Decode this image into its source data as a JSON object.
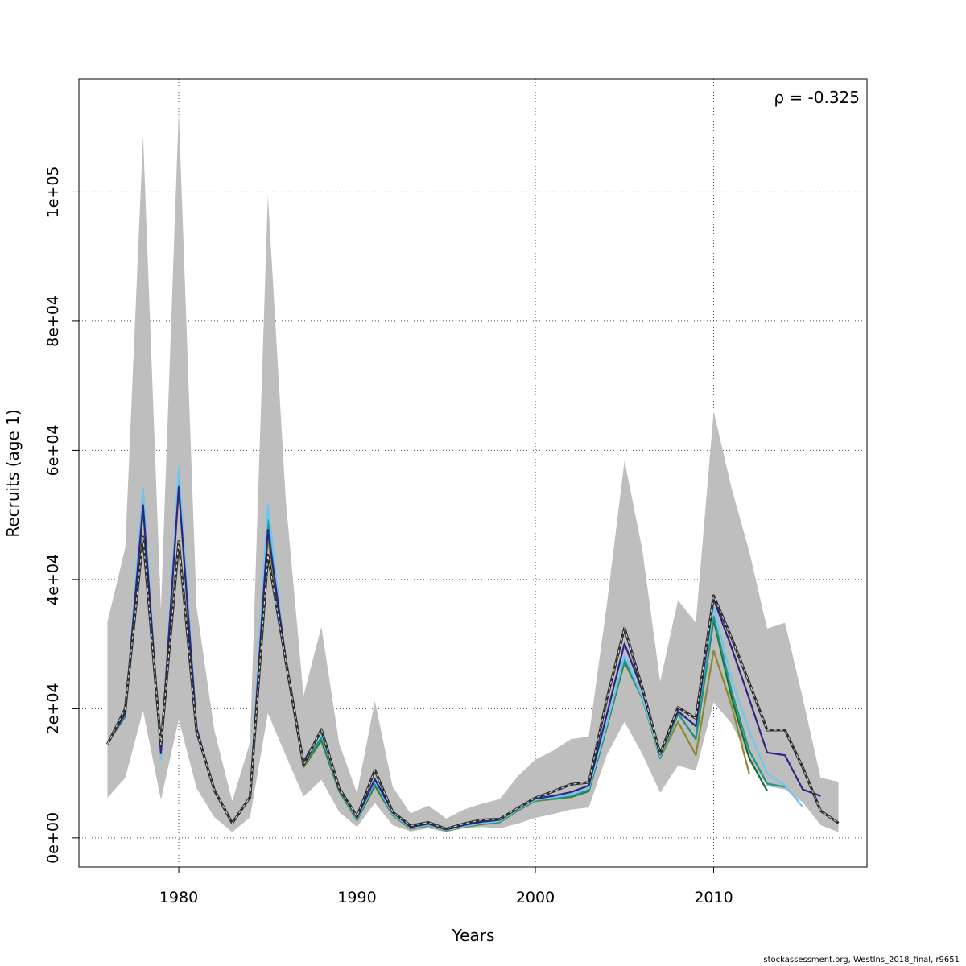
{
  "chart_data": {
    "type": "line",
    "title": "",
    "xlabel": "Years",
    "ylabel": "Recruits (age 1)",
    "annotation": "ρ = -0.325",
    "xlim": [
      1974.4,
      2018.6
    ],
    "ylim": [
      -4500,
      117500
    ],
    "grid": true,
    "legend": "none",
    "x_ticks": [
      1980,
      1990,
      2000,
      2010
    ],
    "x_tick_labels": [
      "1980",
      "1990",
      "2000",
      "2010"
    ],
    "y_ticks": [
      0,
      20000,
      40000,
      60000,
      80000,
      100000
    ],
    "y_tick_labels": [
      "0e+00",
      "2e+04",
      "4e+04",
      "6e+04",
      "8e+04",
      "1e+05"
    ],
    "confidence_band": {
      "color": "#bebebe",
      "x": [
        1976,
        1977,
        1978,
        1979,
        1980,
        1981,
        1982,
        1983,
        1984,
        1985,
        1986,
        1987,
        1988,
        1989,
        1990,
        1991,
        1992,
        1993,
        1994,
        1995,
        1996,
        1997,
        1998,
        1999,
        2000,
        2001,
        2002,
        2003,
        2004,
        2005,
        2006,
        2007,
        2008,
        2009,
        2010,
        2011,
        2012,
        2013,
        2014,
        2015,
        2016,
        2017
      ],
      "lower": [
        6200,
        9300,
        19700,
        5900,
        18300,
        7700,
        3200,
        900,
        3200,
        19300,
        12800,
        6400,
        9000,
        4000,
        1700,
        5400,
        2000,
        1000,
        1500,
        900,
        1500,
        1700,
        1500,
        2200,
        3100,
        3700,
        4400,
        4700,
        12800,
        18000,
        13000,
        7000,
        11200,
        10400,
        21000,
        17700,
        12300,
        8000,
        7500,
        5500,
        2000,
        900
      ],
      "upper": [
        33400,
        44900,
        108700,
        35300,
        112600,
        35700,
        16600,
        5700,
        14800,
        99500,
        52400,
        22000,
        32700,
        14600,
        6900,
        21200,
        7900,
        3800,
        5000,
        3000,
        4400,
        5300,
        6000,
        9500,
        12100,
        13500,
        15300,
        15700,
        35900,
        58400,
        44600,
        24200,
        36800,
        33300,
        66000,
        54200,
        44300,
        32400,
        33300,
        21600,
        9300,
        8700
      ]
    },
    "series": [
      {
        "color": "#2e2e2e",
        "style": "dashed-overlay",
        "x": [
          1976,
          1977,
          1978,
          1979,
          1980,
          1981,
          1982,
          1983,
          1984,
          1985,
          1986,
          1987,
          1988,
          1989,
          1990,
          1991,
          1992,
          1993,
          1994,
          1995,
          1996,
          1997,
          1998,
          1999,
          2000,
          2001,
          2002,
          2003,
          2004,
          2005,
          2006,
          2007,
          2008,
          2009,
          2010,
          2011,
          2012,
          2013,
          2014,
          2015,
          2016,
          2017
        ],
        "values": [
          14500,
          20000,
          46600,
          14400,
          45900,
          16500,
          7400,
          2300,
          6300,
          43800,
          27500,
          11300,
          16800,
          7700,
          3300,
          10500,
          4000,
          1900,
          2400,
          1400,
          2200,
          2800,
          2900,
          4600,
          6200,
          7200,
          8300,
          8600,
          21400,
          32500,
          23200,
          13000,
          20200,
          18500,
          37500,
          31000,
          24000,
          16700,
          16700,
          10900,
          4200,
          2300
        ]
      },
      {
        "color": "#2d2483",
        "style": "solid",
        "x": [
          1976,
          1977,
          1978,
          1979,
          1980,
          1981,
          1982,
          1983,
          1984,
          1985,
          1986,
          1987,
          1988,
          1989,
          1990,
          1991,
          1992,
          1993,
          1994,
          1995,
          1996,
          1997,
          1998,
          1999,
          2000,
          2001,
          2002,
          2003,
          2004,
          2005,
          2006,
          2007,
          2008,
          2009,
          2010,
          2011,
          2012,
          2013,
          2014,
          2015,
          2016
        ],
        "values": [
          14600,
          19300,
          51500,
          13100,
          54300,
          17000,
          7300,
          2300,
          6400,
          47700,
          27800,
          11800,
          16600,
          7700,
          3100,
          9100,
          4000,
          1700,
          2200,
          1300,
          2000,
          2500,
          2800,
          4600,
          6100,
          6500,
          7100,
          8100,
          19000,
          30100,
          22800,
          12900,
          19600,
          17300,
          37000,
          29500,
          21500,
          13200,
          12800,
          7500,
          6500
        ]
      },
      {
        "color": "#6ec6f0",
        "style": "solid",
        "x": [
          1976,
          1977,
          1978,
          1979,
          1980,
          1981,
          1982,
          1983,
          1984,
          1985,
          1986,
          1987,
          1988,
          1989,
          1990,
          1991,
          1992,
          1993,
          1994,
          1995,
          1996,
          1997,
          1998,
          1999,
          2000,
          2001,
          2002,
          2003,
          2004,
          2005,
          2006,
          2007,
          2008,
          2009,
          2010,
          2011,
          2012,
          2013,
          2014,
          2015
        ],
        "values": [
          14700,
          19300,
          54000,
          12200,
          57300,
          17200,
          7200,
          2200,
          6500,
          51500,
          27300,
          11500,
          16200,
          7600,
          2900,
          8800,
          3700,
          1600,
          2000,
          1200,
          1800,
          2300,
          2600,
          4400,
          5900,
          6300,
          6700,
          7700,
          17600,
          28300,
          21800,
          12600,
          19600,
          17400,
          35800,
          24600,
          16500,
          10000,
          8100,
          4800
        ]
      },
      {
        "color": "#1a9a8a",
        "style": "solid",
        "x": [
          1976,
          1977,
          1978,
          1979,
          1980,
          1981,
          1982,
          1983,
          1984,
          1985,
          1986,
          1987,
          1988,
          1989,
          1990,
          1991,
          1992,
          1993,
          1994,
          1995,
          1996,
          1997,
          1998,
          1999,
          2000,
          2001,
          2002,
          2003,
          2004,
          2005,
          2006,
          2007,
          2008,
          2009,
          2010,
          2011,
          2012,
          2013,
          2014
        ],
        "values": [
          14700,
          19000,
          52300,
          12500,
          55300,
          17100,
          7200,
          2200,
          6400,
          49200,
          27500,
          11200,
          15500,
          7400,
          2800,
          8400,
          3600,
          1500,
          2000,
          1200,
          1800,
          2200,
          2500,
          4300,
          5800,
          6100,
          6500,
          7400,
          17300,
          27600,
          21700,
          12400,
          19200,
          15400,
          34300,
          22800,
          13500,
          8400,
          7900
        ]
      },
      {
        "color": "#176c32",
        "style": "solid",
        "x": [
          1976,
          1977,
          1978,
          1979,
          1980,
          1981,
          1982,
          1983,
          1984,
          1985,
          1986,
          1987,
          1988,
          1989,
          1990,
          1991,
          1992,
          1993,
          1994,
          1995,
          1996,
          1997,
          1998,
          1999,
          2000,
          2001,
          2002,
          2003,
          2004,
          2005,
          2006,
          2007,
          2008,
          2009,
          2010,
          2011,
          2012,
          2013
        ],
        "values": [
          14700,
          18900,
          51400,
          13000,
          54800,
          16900,
          7200,
          2200,
          6300,
          48000,
          27300,
          11200,
          15200,
          7300,
          2800,
          8200,
          3600,
          1500,
          2000,
          1200,
          1800,
          2200,
          2500,
          4300,
          5800,
          6100,
          6400,
          7300,
          17200,
          27400,
          21700,
          12500,
          19300,
          15300,
          33800,
          21800,
          12300,
          7300
        ]
      },
      {
        "color": "#8a8a2e",
        "style": "solid",
        "x": [
          1976,
          1977,
          1978,
          1979,
          1980,
          1981,
          1982,
          1983,
          1984,
          1985,
          1986,
          1987,
          1988,
          1989,
          1990,
          1991,
          1992,
          1993,
          1994,
          1995,
          1996,
          1997,
          1998,
          1999,
          2000,
          2001,
          2002,
          2003,
          2004,
          2005,
          2006,
          2007,
          2008,
          2009,
          2010,
          2011,
          2012
        ],
        "values": [
          14700,
          18800,
          50700,
          13500,
          54000,
          16700,
          7200,
          2200,
          6300,
          46400,
          27000,
          10900,
          15000,
          7200,
          2700,
          8000,
          3500,
          1400,
          1900,
          1100,
          1700,
          2100,
          2400,
          4200,
          5700,
          6000,
          6300,
          7200,
          17000,
          27200,
          21600,
          12300,
          18000,
          12800,
          29000,
          20500,
          9900
        ]
      }
    ]
  },
  "footer": {
    "credit": "stockassessment.org, WestIns_2018_final, r9651"
  }
}
